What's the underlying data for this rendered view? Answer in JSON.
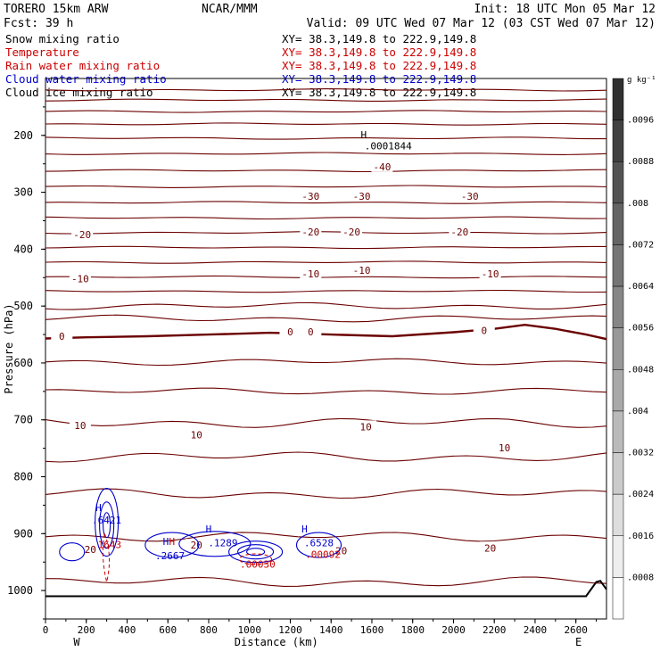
{
  "header": {
    "model": "TORERO  15km ARW",
    "org": "NCAR/MMM",
    "init": "Init: 18 UTC Mon 05 Mar 12",
    "fcst": "Fcst:   39 h",
    "valid": "Valid: 09 UTC Wed 07 Mar 12 (03 CST Wed 07 Mar 12)"
  },
  "legend": [
    {
      "name": "Snow mixing ratio",
      "xy": "XY=  38.3,149.8 to 222.9,149.8",
      "color": "#000000"
    },
    {
      "name": "Temperature",
      "xy": "XY=  38.3,149.8 to 222.9,149.8",
      "color": "#cc0000"
    },
    {
      "name": "Rain water mixing ratio",
      "xy": "XY=  38.3,149.8 to 222.9,149.8",
      "color": "#cc0000"
    },
    {
      "name": "Cloud water mixing ratio",
      "xy": "XY=  38.3,149.8 to 222.9,149.8",
      "color": "#0000cc"
    },
    {
      "name": "Cloud ice mixing ratio",
      "xy": "XY=  38.3,149.8 to 222.9,149.8",
      "color": "#000000"
    }
  ],
  "chart_data": {
    "type": "contour",
    "xlabel": "Distance (km)",
    "ylabel": "Pressure (hPa)",
    "xlim": [
      0,
      2750
    ],
    "ylim": [
      1050,
      100
    ],
    "x_ticks": [
      0,
      200,
      400,
      600,
      800,
      1000,
      1200,
      1400,
      1600,
      1800,
      2000,
      2200,
      2400,
      2600
    ],
    "y_ticks": [
      200,
      300,
      400,
      500,
      600,
      700,
      800,
      900,
      1000
    ],
    "left_end_label": "W",
    "right_end_label": "E",
    "colorbar": {
      "unit": "g kg⁻¹",
      "levels": [
        ".0096",
        ".0088",
        ".008",
        ".0072",
        ".0064",
        ".0056",
        ".0048",
        ".004",
        ".0032",
        ".0024",
        ".0016",
        ".0008"
      ]
    },
    "temperature_contours": [
      {
        "label": "-40",
        "positions": [
          {
            "x": 1650,
            "p": 255
          }
        ]
      },
      {
        "label": "-30",
        "positions": [
          {
            "x": 1300,
            "p": 307
          },
          {
            "x": 1550,
            "p": 307
          },
          {
            "x": 2080,
            "p": 307
          }
        ]
      },
      {
        "label": "-20",
        "positions": [
          {
            "x": 180,
            "p": 374
          },
          {
            "x": 1300,
            "p": 370
          },
          {
            "x": 1500,
            "p": 370
          },
          {
            "x": 2030,
            "p": 370
          }
        ]
      },
      {
        "label": "-10",
        "positions": [
          {
            "x": 170,
            "p": 452
          },
          {
            "x": 1300,
            "p": 443
          },
          {
            "x": 1550,
            "p": 437
          },
          {
            "x": 2180,
            "p": 443
          }
        ]
      },
      {
        "label": "0",
        "positions": [
          {
            "x": 80,
            "p": 553
          },
          {
            "x": 1200,
            "p": 545
          },
          {
            "x": 1300,
            "p": 545
          },
          {
            "x": 2150,
            "p": 543
          }
        ]
      },
      {
        "label": "10",
        "positions": [
          {
            "x": 170,
            "p": 710
          },
          {
            "x": 740,
            "p": 726
          },
          {
            "x": 1570,
            "p": 712
          },
          {
            "x": 2250,
            "p": 749
          }
        ]
      },
      {
        "label": "20",
        "positions": [
          {
            "x": 220,
            "p": 928
          },
          {
            "x": 740,
            "p": 920
          },
          {
            "x": 1450,
            "p": 930
          },
          {
            "x": 2180,
            "p": 925
          }
        ]
      }
    ],
    "annotations": [
      {
        "text": "H",
        "x": 1560,
        "p": 205,
        "color": "#000000"
      },
      {
        "text": ".0001844",
        "x": 1680,
        "p": 225,
        "color": "#000000"
      },
      {
        "text": "H",
        "x": 260,
        "p": 860,
        "color": "#0000cc"
      },
      {
        "text": ".6421",
        "x": 300,
        "p": 882,
        "color": "#0000cc"
      },
      {
        "text": ".1643",
        "x": 300,
        "p": 925,
        "color": "#cc0000"
      },
      {
        "text": "H",
        "x": 590,
        "p": 920,
        "color": "#0000cc"
      },
      {
        "text": "H",
        "x": 620,
        "p": 920,
        "color": "#cc0000"
      },
      {
        "text": "H",
        "x": 800,
        "p": 898,
        "color": "#0000cc"
      },
      {
        "text": ".2667",
        "x": 610,
        "p": 945,
        "color": "#0000cc"
      },
      {
        "text": ".1289",
        "x": 870,
        "p": 922,
        "color": "#0000cc"
      },
      {
        "text": ".00030",
        "x": 1040,
        "p": 960,
        "color": "#cc0000"
      },
      {
        "text": "H",
        "x": 1270,
        "p": 898,
        "color": "#0000cc"
      },
      {
        "text": ".6528",
        "x": 1340,
        "p": 922,
        "color": "#0000cc"
      },
      {
        "text": ".00092",
        "x": 1360,
        "p": 943,
        "color": "#cc0000"
      }
    ],
    "surface": {
      "x": [
        0,
        2650,
        2700,
        2720,
        2750
      ],
      "p": [
        1010,
        1010,
        985,
        983,
        998
      ]
    }
  }
}
